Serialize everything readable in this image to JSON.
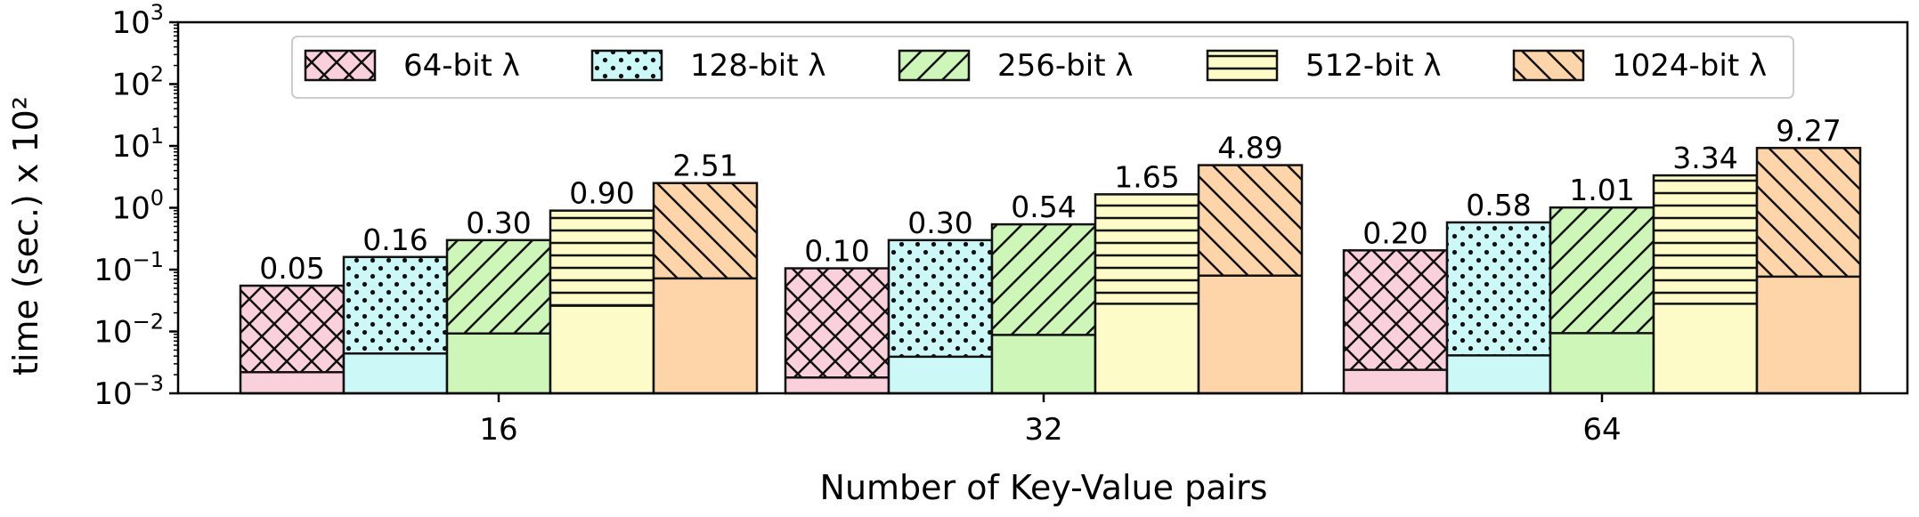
{
  "chart_data": {
    "type": "bar",
    "xlabel": "Number of Key-Value pairs",
    "ylabel": "time (sec.) x 10²",
    "y_scale": "log",
    "ylim": [
      0.001,
      1000
    ],
    "y_ticks": [
      {
        "value": 0.001,
        "base": "10",
        "exp": "−3"
      },
      {
        "value": 0.01,
        "base": "10",
        "exp": "−2"
      },
      {
        "value": 0.1,
        "base": "10",
        "exp": "−1"
      },
      {
        "value": 1,
        "base": "10",
        "exp": "0"
      },
      {
        "value": 10,
        "base": "10",
        "exp": "1"
      },
      {
        "value": 100,
        "base": "10",
        "exp": "2"
      },
      {
        "value": 1000,
        "base": "10",
        "exp": "3"
      }
    ],
    "categories": [
      "16",
      "32",
      "64"
    ],
    "legend_position": "top-center",
    "series": [
      {
        "name": "64-bit λ",
        "color": "#f9d0dc",
        "hatch": "crosshatch",
        "values": [
          0.055,
          0.105,
          0.205
        ],
        "inner_values": [
          0.0022,
          0.0018,
          0.0024
        ],
        "value_labels": [
          "0.05",
          "0.10",
          "0.20"
        ]
      },
      {
        "name": "128-bit λ",
        "color": "#cdf8f8",
        "hatch": "dots",
        "values": [
          0.16,
          0.3,
          0.58
        ],
        "inner_values": [
          0.0044,
          0.0039,
          0.0041
        ],
        "value_labels": [
          "0.16",
          "0.30",
          "0.58"
        ]
      },
      {
        "name": "256-bit λ",
        "color": "#cdf6b8",
        "hatch": "diagonal-forward",
        "values": [
          0.3,
          0.54,
          1.01
        ],
        "inner_values": [
          0.0093,
          0.0088,
          0.0094
        ],
        "value_labels": [
          "0.30",
          "0.54",
          "1.01"
        ]
      },
      {
        "name": "512-bit λ",
        "color": "#fdfcc8",
        "hatch": "horizontal",
        "values": [
          0.9,
          1.65,
          3.34
        ],
        "inner_values": [
          0.026,
          0.028,
          0.028
        ],
        "value_labels": [
          "0.90",
          "1.65",
          "3.34"
        ]
      },
      {
        "name": "1024-bit λ",
        "color": "#fdd5a8",
        "hatch": "diagonal-back",
        "values": [
          2.51,
          4.89,
          9.27
        ],
        "inner_values": [
          0.072,
          0.08,
          0.077
        ],
        "value_labels": [
          "2.51",
          "4.89",
          "9.27"
        ]
      }
    ]
  }
}
